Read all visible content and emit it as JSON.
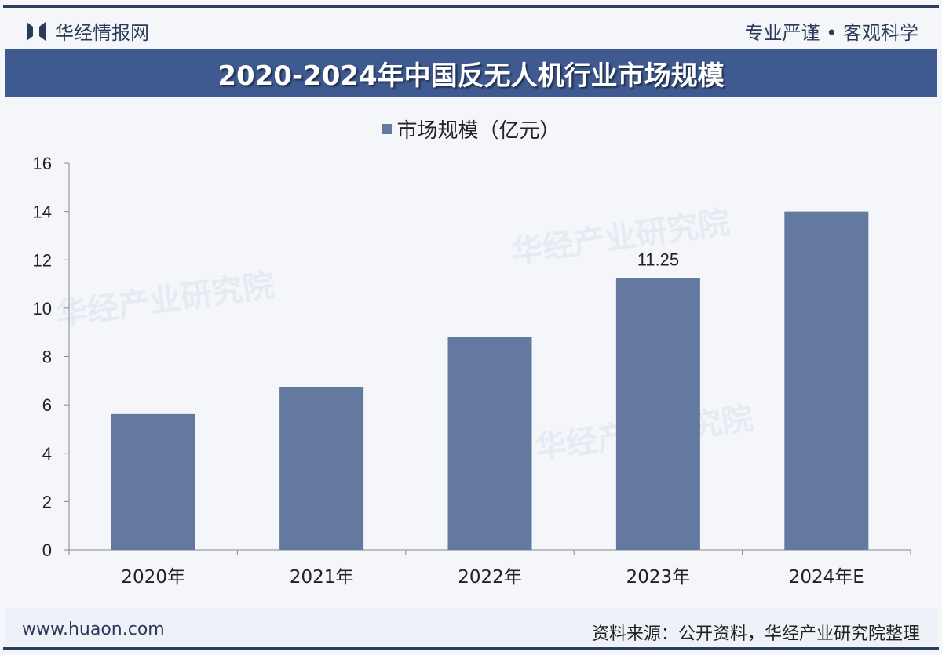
{
  "header": {
    "brand": "华经情报网",
    "slogan": "专业严谨 • 客观科学",
    "title": "2020-2024年中国反无人机行业市场规模"
  },
  "footer": {
    "url": "www.huaon.com",
    "source": "资料来源：公开资料，华经产业研究院整理"
  },
  "watermark": {
    "text": "华经产业研究院",
    "url": "www.huaon.com"
  },
  "colors": {
    "bar": "#64799f",
    "banner": "#3f5a91"
  },
  "chart_data": {
    "type": "bar",
    "title": "2020-2024年中国反无人机行业市场规模",
    "legend": [
      "市场规模（亿元）"
    ],
    "legend_placement": "top",
    "categories": [
      "2020年",
      "2021年",
      "2022年",
      "2023年",
      "2024年E"
    ],
    "series": [
      {
        "name": "市场规模（亿元）",
        "values": [
          5.62,
          6.75,
          8.8,
          11.25,
          14.0
        ]
      }
    ],
    "data_labels": {
      "3": "11.25"
    },
    "yticks": [
      "0",
      "2",
      "4",
      "6",
      "8",
      "10",
      "12",
      "14",
      "16"
    ],
    "ylim": [
      0,
      16
    ],
    "grid": false
  }
}
